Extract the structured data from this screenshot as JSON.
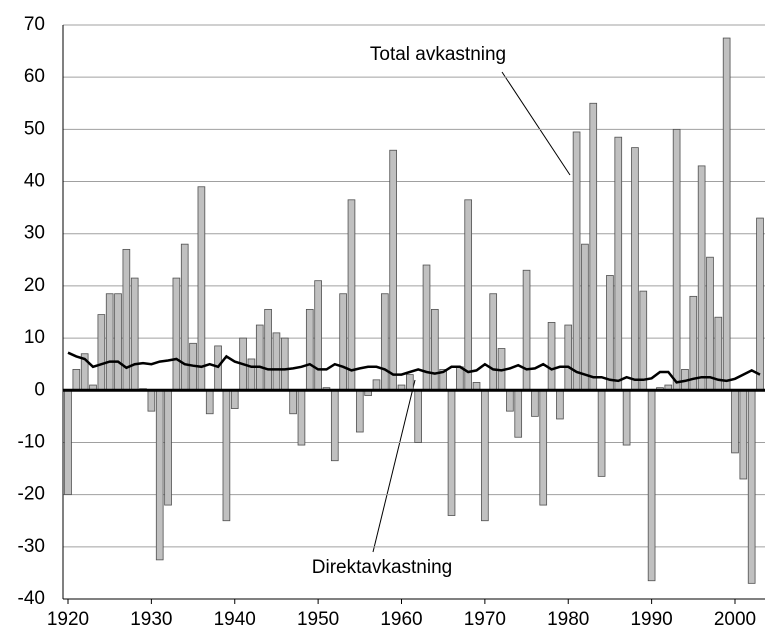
{
  "chart_data": {
    "type": "bar-line",
    "x": [
      1920,
      1921,
      1922,
      1923,
      1924,
      1925,
      1926,
      1927,
      1928,
      1929,
      1930,
      1931,
      1932,
      1933,
      1934,
      1935,
      1936,
      1937,
      1938,
      1939,
      1940,
      1941,
      1942,
      1943,
      1944,
      1945,
      1946,
      1947,
      1948,
      1949,
      1950,
      1951,
      1952,
      1953,
      1954,
      1955,
      1956,
      1957,
      1958,
      1959,
      1960,
      1961,
      1962,
      1963,
      1964,
      1965,
      1966,
      1967,
      1968,
      1969,
      1970,
      1971,
      1972,
      1973,
      1974,
      1975,
      1976,
      1977,
      1978,
      1979,
      1980,
      1981,
      1982,
      1983,
      1984,
      1985,
      1986,
      1987,
      1988,
      1989,
      1990,
      1991,
      1992,
      1993,
      1994,
      1995,
      1996,
      1997,
      1998,
      1999,
      2000,
      2001,
      2002,
      2003
    ],
    "series": [
      {
        "name": "Total avkastning",
        "color": "#c0c0c0",
        "kind": "bar",
        "values": [
          -20,
          4,
          7,
          1,
          14.5,
          18.5,
          18.5,
          27,
          21.5,
          0.3,
          -4,
          -32.5,
          -22,
          21.5,
          28,
          9,
          39,
          -4.5,
          8.5,
          -25,
          -3.5,
          10,
          6,
          12.5,
          15.5,
          11,
          10,
          -4.5,
          -10.5,
          15.5,
          21,
          0.5,
          -13.5,
          18.5,
          36.5,
          -8,
          -1,
          2,
          18.5,
          46,
          1,
          3,
          -10,
          24,
          15.5,
          4,
          -24,
          4.5,
          36.5,
          1.5,
          -25,
          18.5,
          8,
          -4,
          -9,
          23,
          -5,
          -22,
          13,
          -5.5,
          12.5,
          49.5,
          28,
          55,
          -16.5,
          22,
          48.5,
          -10.5,
          46.5,
          19,
          -36.5,
          0.5,
          1,
          50,
          4,
          18,
          43,
          25.5,
          14,
          67.5,
          -12,
          -17,
          -37,
          33
        ]
      },
      {
        "name": "Direktavkastning",
        "color": "#000000",
        "kind": "line",
        "values": [
          7.2,
          6.5,
          6,
          4.5,
          5,
          5.5,
          5.5,
          4.3,
          5,
          5.2,
          5,
          5.5,
          5.7,
          6,
          5,
          4.7,
          4.5,
          5,
          4.5,
          6.5,
          5.5,
          5,
          4.5,
          4.5,
          4,
          4,
          4,
          4.2,
          4.5,
          5,
          4,
          4,
          5,
          4.5,
          3.8,
          4.2,
          4.5,
          4.5,
          4,
          3,
          3,
          3.5,
          4,
          3.5,
          3.2,
          3.5,
          4.5,
          4.5,
          3.5,
          3.8,
          5,
          4,
          3.8,
          4.2,
          4.8,
          4,
          4.2,
          5,
          4,
          4.5,
          4.5,
          3.5,
          3,
          2.5,
          2.5,
          2,
          1.8,
          2.5,
          2,
          2,
          2.3,
          3.5,
          3.5,
          1.5,
          1.8,
          2.2,
          2.5,
          2.5,
          2,
          1.8,
          2.2,
          3,
          3.8,
          3
        ]
      }
    ],
    "xlim": [
      1919.4,
      2003.6
    ],
    "xticks": [
      1920,
      1930,
      1940,
      1950,
      1960,
      1970,
      1980,
      1990,
      2000
    ],
    "ylim": [
      -40,
      70
    ],
    "yticks": [
      -40,
      -30,
      -20,
      -10,
      0,
      10,
      20,
      30,
      40,
      50,
      60,
      70
    ],
    "grid": true
  }
}
